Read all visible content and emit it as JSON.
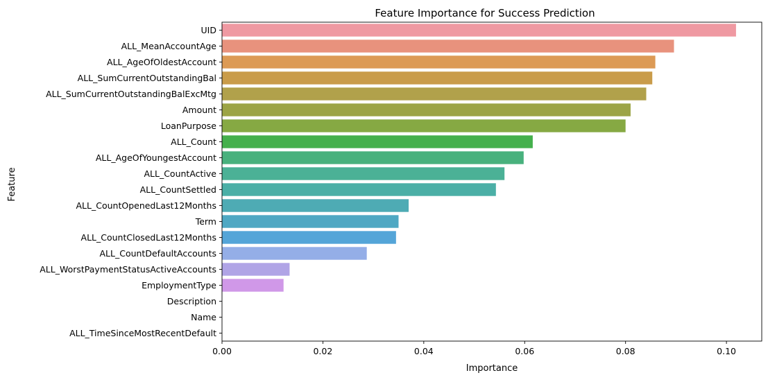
{
  "chart_data": {
    "type": "bar",
    "orientation": "horizontal",
    "title": "Feature Importance for Success Prediction",
    "xlabel": "Importance",
    "ylabel": "Feature",
    "xlim": [
      0,
      0.107
    ],
    "xticks": [
      0,
      0.02,
      0.04,
      0.06,
      0.08,
      0.1
    ],
    "xtick_labels": [
      "0.00",
      "0.02",
      "0.04",
      "0.06",
      "0.08",
      "0.10"
    ],
    "grid": false,
    "categories": [
      "UID",
      "ALL_MeanAccountAge",
      "ALL_AgeOfOldestAccount",
      "ALL_SumCurrentOutstandingBal",
      "ALL_SumCurrentOutstandingBalExcMtg",
      "Amount",
      "LoanPurpose",
      "ALL_Count",
      "ALL_AgeOfYoungestAccount",
      "ALL_CountActive",
      "ALL_CountSettled",
      "ALL_CountOpenedLast12Months",
      "Term",
      "ALL_CountClosedLast12Months",
      "ALL_CountDefaultAccounts",
      "ALL_WorstPaymentStatusActiveAccounts",
      "EmploymentType",
      "Description",
      "Name",
      "ALL_TimeSinceMostRecentDefault"
    ],
    "values": [
      0.1019,
      0.0896,
      0.0859,
      0.0853,
      0.0841,
      0.081,
      0.08,
      0.0616,
      0.0598,
      0.056,
      0.0543,
      0.037,
      0.035,
      0.0345,
      0.0287,
      0.0134,
      0.0122,
      0.0,
      0.0,
      0.0
    ],
    "colors": [
      "#ef99a2",
      "#e8927d",
      "#dc9a55",
      "#c99c4a",
      "#b1a14b",
      "#9ca446",
      "#86a943",
      "#44b04c",
      "#48b17d",
      "#4bb196",
      "#4bafa6",
      "#4eabb4",
      "#4fa8c3",
      "#54a5d8",
      "#94aee7",
      "#b0a4e6",
      "#d098e8",
      "#e68fd8",
      "#ec8fc7",
      "#ef93b6"
    ]
  }
}
